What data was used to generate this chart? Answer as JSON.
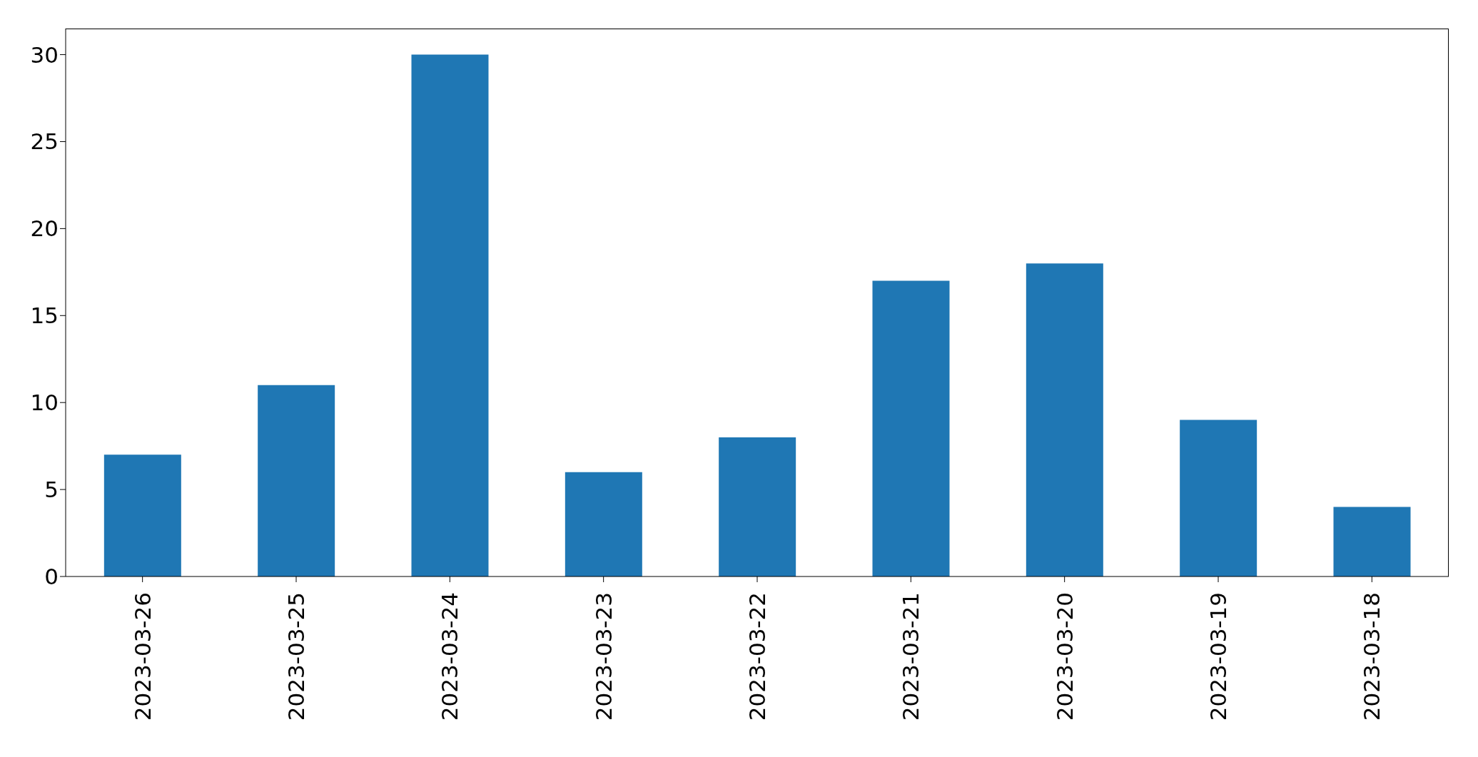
{
  "chart_data": {
    "type": "bar",
    "categories": [
      "2023-03-26",
      "2023-03-25",
      "2023-03-24",
      "2023-03-23",
      "2023-03-22",
      "2023-03-21",
      "2023-03-20",
      "2023-03-19",
      "2023-03-18"
    ],
    "values": [
      7,
      11,
      30,
      6,
      8,
      17,
      18,
      9,
      4
    ],
    "color": "#1f77b4",
    "ylim": [
      0,
      31.5
    ],
    "yticks": [
      0,
      5,
      10,
      15,
      20,
      25,
      30
    ]
  }
}
